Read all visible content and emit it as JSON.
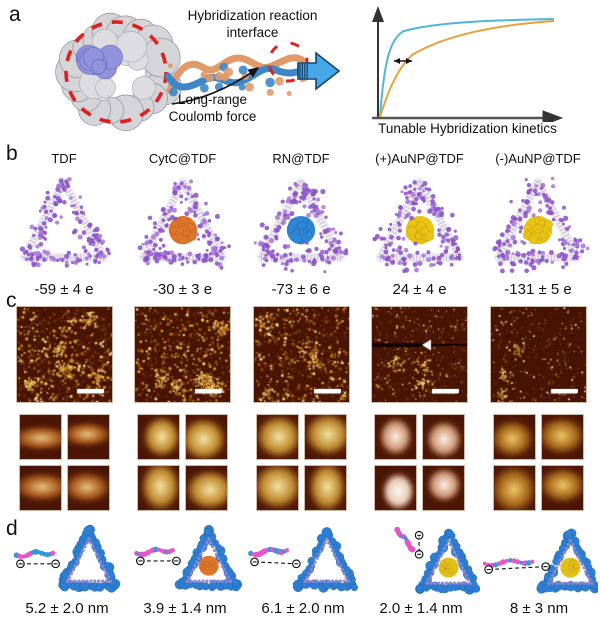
{
  "colors": {
    "block_arrow_blue": "#45a7e8",
    "block_arrow_outline": "#16436e",
    "curve_fast_blue": "#4fb6da",
    "curve_slow_orange": "#e8a23b",
    "dashed_circle_red": "#e21f1f",
    "tdf_dot_purple": "#8a52c8",
    "tdf_strand_lavender": "#ececf5",
    "core_cytc_orange": "#e0762a",
    "core_rn_blue": "#2d86d8",
    "core_aunp_gold": "#e9c414",
    "afm_background": "#4a1505",
    "afm_speckle_gold": "#d9a43c",
    "d_framework_blue": "#2e7fd4",
    "d_strand_magenta": "#e855c8"
  },
  "panel_a": {
    "label": "a",
    "interface_caption_line1": "Hybridization reaction",
    "interface_caption_line2": "interface",
    "force_caption_line1": "Long-range",
    "force_caption_line2": "Coulomb force",
    "graph_xlabel": "Tunable Hybridization kinetics"
  },
  "chart_data": {
    "type": "line",
    "title": "",
    "xlabel": "Tunable Hybridization kinetics",
    "ylabel": "",
    "axis_ticks": "none (conceptual sketch)",
    "legend_position": "none",
    "series": [
      {
        "name": "fast hybridization",
        "color": "#4fb6da",
        "x": [
          0,
          0.05,
          0.1,
          0.2,
          0.35,
          0.6,
          1.0
        ],
        "y": [
          0,
          0.55,
          0.75,
          0.87,
          0.93,
          0.97,
          1.0
        ]
      },
      {
        "name": "slow hybridization",
        "color": "#e8a23b",
        "x": [
          0,
          0.05,
          0.1,
          0.2,
          0.35,
          0.6,
          1.0
        ],
        "y": [
          0,
          0.25,
          0.45,
          0.63,
          0.78,
          0.9,
          0.98
        ]
      }
    ],
    "annotations": [
      "horizontal double-headed arrow between the two curves indicating tunable kinetic shift"
    ]
  },
  "panel_b": {
    "label": "b",
    "columns": [
      {
        "name": "TDF",
        "charge": "-59 ± 4 e",
        "core": "none"
      },
      {
        "name": "CytC@TDF",
        "charge": "-30 ± 3 e",
        "core": "#e0762a"
      },
      {
        "name": "RN@TDF",
        "charge": "-73 ± 6 e",
        "core": "#2d86d8"
      },
      {
        "name": "(+)AuNP@TDF",
        "charge": "24 ± 4 e",
        "core": "#e9c414"
      },
      {
        "name": "(-)AuNP@TDF",
        "charge": "-131 ± 5 e",
        "core": "#e9c414"
      }
    ]
  },
  "panel_c": {
    "label": "c",
    "afm_images": [
      {
        "name": "AFM TDF",
        "marker": "none"
      },
      {
        "name": "AFM CytC@TDF",
        "marker": "none"
      },
      {
        "name": "AFM RN@TDF",
        "marker": "none"
      },
      {
        "name": "AFM (+)AuNP@TDF",
        "marker": "white arrowhead on dark streak"
      },
      {
        "name": "AFM (-)AuNP@TDF",
        "marker": "none"
      }
    ]
  },
  "panel_d": {
    "label": "d",
    "items": [
      {
        "distance": "5.2 ± 2.0 nm",
        "core": "none"
      },
      {
        "distance": "3.9 ± 1.4 nm",
        "core": "#e0762a"
      },
      {
        "distance": "6.1 ± 2.0 nm",
        "core": "none"
      },
      {
        "distance": "2.0 ± 1.4 nm",
        "core": "#e3c019"
      },
      {
        "distance": "8 ± 3 nm",
        "core": "#e3c019"
      }
    ]
  }
}
